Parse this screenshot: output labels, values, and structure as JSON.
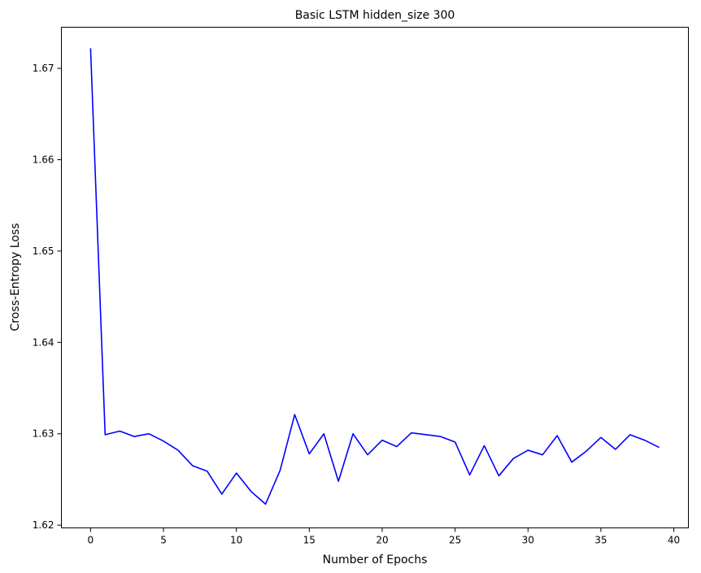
{
  "chart_data": {
    "type": "line",
    "title": "Basic LSTM hidden_size 300",
    "xlabel": "Number of Epochs",
    "ylabel": "Cross-Entropy Loss",
    "xlim": [
      -2,
      41
    ],
    "ylim": [
      1.6197,
      1.6745
    ],
    "xticks": [
      0,
      5,
      10,
      15,
      20,
      25,
      30,
      35,
      40
    ],
    "xtick_labels": [
      "0",
      "5",
      "10",
      "15",
      "20",
      "25",
      "30",
      "35",
      "40"
    ],
    "yticks": [
      1.62,
      1.63,
      1.64,
      1.65,
      1.66,
      1.67
    ],
    "ytick_labels": [
      "1.62",
      "1.63",
      "1.64",
      "1.65",
      "1.66",
      "1.67"
    ],
    "grid": false,
    "series": [
      {
        "color": "#0000ff",
        "x": [
          0,
          1,
          2,
          3,
          4,
          5,
          6,
          7,
          8,
          9,
          10,
          11,
          12,
          13,
          14,
          15,
          16,
          17,
          18,
          19,
          20,
          21,
          22,
          23,
          24,
          25,
          26,
          27,
          28,
          29,
          30,
          31,
          32,
          33,
          34,
          35,
          36,
          37,
          38,
          39
        ],
        "y": [
          1.6722,
          1.6299,
          1.6303,
          1.6297,
          1.63,
          1.6292,
          1.6282,
          1.6265,
          1.6259,
          1.6234,
          1.6257,
          1.6237,
          1.6223,
          1.626,
          1.6321,
          1.6278,
          1.63,
          1.6248,
          1.63,
          1.6277,
          1.6293,
          1.6286,
          1.6301,
          1.6299,
          1.6297,
          1.6291,
          1.6255,
          1.6287,
          1.6254,
          1.6273,
          1.6282,
          1.6277,
          1.6298,
          1.6269,
          1.6281,
          1.6296,
          1.6283,
          1.6299,
          1.6293,
          1.6285
        ]
      }
    ]
  }
}
